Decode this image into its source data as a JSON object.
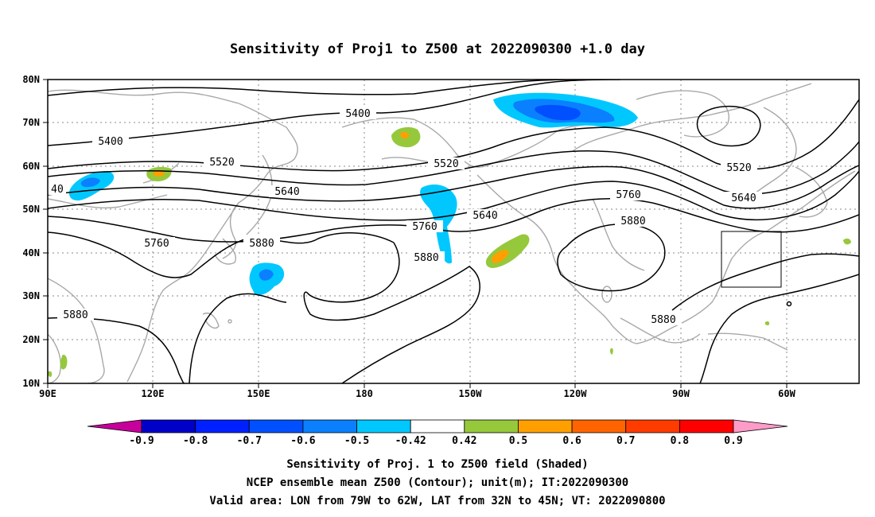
{
  "title": "Sensitivity of Proj1 to Z500 at 2022090300 +1.0 day",
  "map": {
    "lon_ticks": [
      "90E",
      "120E",
      "150E",
      "180",
      "150W",
      "120W",
      "90W",
      "60W"
    ],
    "lat_ticks": [
      "80N",
      "70N",
      "60N",
      "50N",
      "40N",
      "30N",
      "20N",
      "10N"
    ],
    "contour_labels": [
      "5400",
      "5400",
      "5520",
      "5520",
      "5520",
      "5640",
      "5640",
      "5640",
      "5760",
      "5760",
      "5760",
      "5880",
      "5880",
      "5880",
      "5880",
      "40"
    ],
    "valid_box": {
      "lon_range": [
        "79W",
        "62W"
      ],
      "lat_range": [
        "32N",
        "45N"
      ]
    }
  },
  "colorbar": {
    "labels": [
      "-0.9",
      "-0.8",
      "-0.7",
      "-0.6",
      "-0.5",
      "-0.42",
      "0.42",
      "0.5",
      "0.6",
      "0.7",
      "0.8",
      "0.9"
    ],
    "colors": [
      "#0000c8",
      "#0020ff",
      "#0050ff",
      "#0a80ff",
      "#00c8ff",
      "#ffffff",
      "#96c83c",
      "#ffa000",
      "#ff6400",
      "#ff3c00",
      "#ff0000"
    ],
    "low_arrow_color": "#c8009b",
    "high_arrow_color": "#ff9bc8"
  },
  "footer": {
    "line1": "Sensitivity of Proj. 1 to Z500 field (Shaded)",
    "line2": "NCEP ensemble mean Z500 (Contour); unit(m); IT:2022090300",
    "line3": "Valid area: LON from 79W to 62W, LAT from 32N to 45N; VT: 2022090800"
  }
}
